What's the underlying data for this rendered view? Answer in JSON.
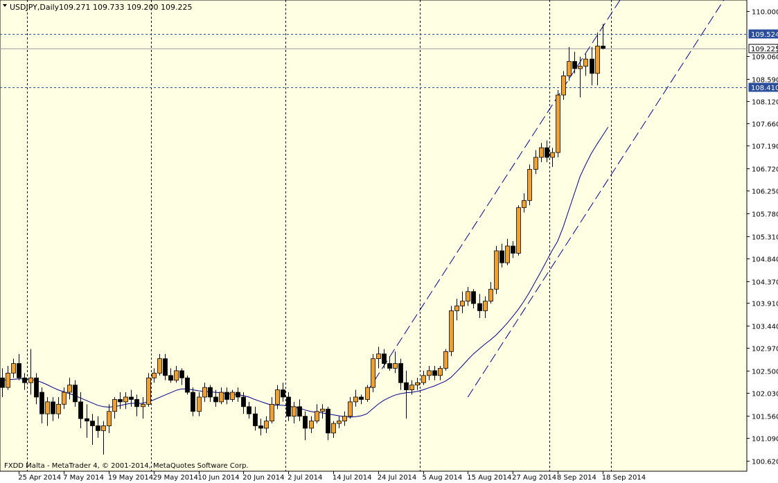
{
  "header": {
    "symbol": "USDJPY,Daily",
    "ohlc": "109.271 109.733 109.200 109.225"
  },
  "footer": {
    "copyright": "FXDD Malta - MetaTrader 4, © 2001-2014, MetaQuotes Software Corp."
  },
  "colors": {
    "background": "#ffffff",
    "plot_background": "#ffffe4",
    "bull_body": "#f0a030",
    "bear_body": "#000000",
    "wick": "#000000",
    "ma_line": "#00008b",
    "channel": "#00008b",
    "grid_vertical": "#000000",
    "level_line": "#2a4d9c",
    "price_tag_blue": "#2a4d9c",
    "price_tag_current": "#000000",
    "bid_line": "#a0a0a0"
  },
  "chart_data": {
    "type": "candlestick",
    "symbol": "USDJPY",
    "timeframe": "Daily",
    "ylim": [
      100.45,
      110.2
    ],
    "y_ticks": [
      110.0,
      109.06,
      108.59,
      108.12,
      107.66,
      107.19,
      106.72,
      106.25,
      105.78,
      105.31,
      104.84,
      104.37,
      103.91,
      103.44,
      102.97,
      102.5,
      102.03,
      101.56,
      101.09,
      100.62
    ],
    "y_tick_labels": [
      "110.000",
      "109.060",
      "108.590",
      "108.120",
      "107.660",
      "107.190",
      "106.720",
      "106.250",
      "105.780",
      "105.310",
      "104.840",
      "104.370",
      "103.910",
      "103.440",
      "102.970",
      "102.500",
      "102.030",
      "101.560",
      "101.090",
      "100.620"
    ],
    "x_labels": [
      {
        "text": "25 Apr 2014",
        "index": 3
      },
      {
        "text": "7 May 2014",
        "index": 11
      },
      {
        "text": "19 May 2014",
        "index": 19
      },
      {
        "text": "29 May 2014",
        "index": 27
      },
      {
        "text": "10 Jun 2014",
        "index": 35
      },
      {
        "text": "20 Jun 2014",
        "index": 43
      },
      {
        "text": "2 Jul 2014",
        "index": 51
      },
      {
        "text": "14 Jul 2014",
        "index": 59
      },
      {
        "text": "24 Jul 2014",
        "index": 67
      },
      {
        "text": "5 Aug 2014",
        "index": 75
      },
      {
        "text": "15 Aug 2014",
        "index": 83
      },
      {
        "text": "27 Aug 2014",
        "index": 91
      },
      {
        "text": "8 Sep 2014",
        "index": 99
      },
      {
        "text": "18 Sep 2014",
        "index": 107
      }
    ],
    "vertical_grid_indices": [
      4.5,
      26.5,
      50.5,
      74.5,
      97.5,
      108.5
    ],
    "horizontal_levels": [
      109.524,
      108.41
    ],
    "current_bid": 109.225,
    "price_tags": [
      {
        "label": "109.524",
        "value": 109.524,
        "style": "blue"
      },
      {
        "label": "109.225",
        "value": 109.225,
        "style": "current"
      },
      {
        "label": "108.410",
        "value": 108.41,
        "style": "blue"
      }
    ],
    "candles": [
      {
        "o": 102.35,
        "h": 102.55,
        "l": 101.95,
        "c": 102.15
      },
      {
        "o": 102.15,
        "h": 102.6,
        "l": 102.1,
        "c": 102.45
      },
      {
        "o": 102.45,
        "h": 102.75,
        "l": 102.35,
        "c": 102.65
      },
      {
        "o": 102.65,
        "h": 102.85,
        "l": 102.3,
        "c": 102.35
      },
      {
        "o": 102.35,
        "h": 102.45,
        "l": 102.1,
        "c": 102.25
      },
      {
        "o": 102.25,
        "h": 102.95,
        "l": 102.0,
        "c": 102.35
      },
      {
        "o": 102.35,
        "h": 102.45,
        "l": 101.8,
        "c": 101.95
      },
      {
        "o": 102.05,
        "h": 102.15,
        "l": 101.4,
        "c": 101.6
      },
      {
        "o": 101.6,
        "h": 101.95,
        "l": 101.35,
        "c": 101.85
      },
      {
        "o": 101.85,
        "h": 101.95,
        "l": 101.45,
        "c": 101.6
      },
      {
        "o": 101.6,
        "h": 101.95,
        "l": 101.5,
        "c": 101.8
      },
      {
        "o": 101.8,
        "h": 102.15,
        "l": 101.7,
        "c": 102.05
      },
      {
        "o": 102.05,
        "h": 102.35,
        "l": 101.9,
        "c": 102.2
      },
      {
        "o": 102.2,
        "h": 102.3,
        "l": 101.75,
        "c": 101.85
      },
      {
        "o": 101.85,
        "h": 102.05,
        "l": 101.3,
        "c": 101.5
      },
      {
        "o": 101.5,
        "h": 101.8,
        "l": 101.1,
        "c": 101.45
      },
      {
        "o": 101.45,
        "h": 101.6,
        "l": 100.95,
        "c": 101.35
      },
      {
        "o": 101.35,
        "h": 101.55,
        "l": 101.1,
        "c": 101.25
      },
      {
        "o": 101.25,
        "h": 101.45,
        "l": 100.75,
        "c": 101.35
      },
      {
        "o": 101.35,
        "h": 101.8,
        "l": 101.2,
        "c": 101.65
      },
      {
        "o": 101.65,
        "h": 101.95,
        "l": 101.5,
        "c": 101.9
      },
      {
        "o": 101.9,
        "h": 102.05,
        "l": 101.7,
        "c": 101.85
      },
      {
        "o": 101.85,
        "h": 102.05,
        "l": 101.7,
        "c": 101.95
      },
      {
        "o": 101.95,
        "h": 102.1,
        "l": 101.75,
        "c": 101.9
      },
      {
        "o": 101.9,
        "h": 102.0,
        "l": 101.55,
        "c": 101.75
      },
      {
        "o": 101.75,
        "h": 101.95,
        "l": 101.5,
        "c": 101.8
      },
      {
        "o": 101.8,
        "h": 102.45,
        "l": 101.75,
        "c": 102.35
      },
      {
        "o": 102.35,
        "h": 102.55,
        "l": 102.25,
        "c": 102.45
      },
      {
        "o": 102.45,
        "h": 102.85,
        "l": 102.4,
        "c": 102.75
      },
      {
        "o": 102.75,
        "h": 102.85,
        "l": 102.3,
        "c": 102.4
      },
      {
        "o": 102.4,
        "h": 102.55,
        "l": 102.25,
        "c": 102.3
      },
      {
        "o": 102.3,
        "h": 102.6,
        "l": 102.25,
        "c": 102.5
      },
      {
        "o": 102.5,
        "h": 102.55,
        "l": 102.2,
        "c": 102.35
      },
      {
        "o": 102.35,
        "h": 102.4,
        "l": 102.0,
        "c": 102.05
      },
      {
        "o": 102.05,
        "h": 102.15,
        "l": 101.55,
        "c": 101.65
      },
      {
        "o": 101.65,
        "h": 102.05,
        "l": 101.55,
        "c": 101.95
      },
      {
        "o": 101.95,
        "h": 102.25,
        "l": 101.85,
        "c": 102.15
      },
      {
        "o": 102.15,
        "h": 102.2,
        "l": 101.85,
        "c": 101.95
      },
      {
        "o": 101.95,
        "h": 102.1,
        "l": 101.75,
        "c": 101.85
      },
      {
        "o": 101.85,
        "h": 102.15,
        "l": 101.8,
        "c": 102.05
      },
      {
        "o": 102.05,
        "h": 102.15,
        "l": 101.8,
        "c": 101.9
      },
      {
        "o": 101.9,
        "h": 102.1,
        "l": 101.85,
        "c": 102.05
      },
      {
        "o": 102.05,
        "h": 102.15,
        "l": 101.85,
        "c": 101.95
      },
      {
        "o": 101.95,
        "h": 102.05,
        "l": 101.6,
        "c": 101.75
      },
      {
        "o": 101.75,
        "h": 101.85,
        "l": 101.5,
        "c": 101.6
      },
      {
        "o": 101.6,
        "h": 101.75,
        "l": 101.25,
        "c": 101.35
      },
      {
        "o": 101.35,
        "h": 101.5,
        "l": 101.15,
        "c": 101.3
      },
      {
        "o": 101.3,
        "h": 101.55,
        "l": 101.2,
        "c": 101.45
      },
      {
        "o": 101.45,
        "h": 101.95,
        "l": 101.4,
        "c": 101.8
      },
      {
        "o": 101.8,
        "h": 102.2,
        "l": 101.7,
        "c": 102.1
      },
      {
        "o": 102.1,
        "h": 102.25,
        "l": 101.85,
        "c": 101.95
      },
      {
        "o": 101.95,
        "h": 102.05,
        "l": 101.45,
        "c": 101.55
      },
      {
        "o": 101.55,
        "h": 101.85,
        "l": 101.4,
        "c": 101.75
      },
      {
        "o": 101.75,
        "h": 101.9,
        "l": 101.45,
        "c": 101.55
      },
      {
        "o": 101.55,
        "h": 101.65,
        "l": 101.05,
        "c": 101.3
      },
      {
        "o": 101.3,
        "h": 101.55,
        "l": 101.2,
        "c": 101.45
      },
      {
        "o": 101.45,
        "h": 101.8,
        "l": 101.4,
        "c": 101.65
      },
      {
        "o": 101.65,
        "h": 101.8,
        "l": 101.5,
        "c": 101.7
      },
      {
        "o": 101.7,
        "h": 101.75,
        "l": 101.05,
        "c": 101.2
      },
      {
        "o": 101.2,
        "h": 101.45,
        "l": 101.1,
        "c": 101.4
      },
      {
        "o": 101.4,
        "h": 101.55,
        "l": 101.3,
        "c": 101.45
      },
      {
        "o": 101.45,
        "h": 101.65,
        "l": 101.35,
        "c": 101.55
      },
      {
        "o": 101.55,
        "h": 101.95,
        "l": 101.5,
        "c": 101.85
      },
      {
        "o": 101.85,
        "h": 102.1,
        "l": 101.75,
        "c": 101.95
      },
      {
        "o": 101.95,
        "h": 102.0,
        "l": 101.8,
        "c": 101.9
      },
      {
        "o": 101.9,
        "h": 102.2,
        "l": 101.85,
        "c": 102.15
      },
      {
        "o": 102.15,
        "h": 102.85,
        "l": 102.05,
        "c": 102.75
      },
      {
        "o": 102.75,
        "h": 103.0,
        "l": 102.55,
        "c": 102.85
      },
      {
        "o": 102.85,
        "h": 102.95,
        "l": 102.55,
        "c": 102.65
      },
      {
        "o": 102.65,
        "h": 102.8,
        "l": 102.5,
        "c": 102.55
      },
      {
        "o": 102.55,
        "h": 102.9,
        "l": 102.45,
        "c": 102.65
      },
      {
        "o": 102.65,
        "h": 102.75,
        "l": 102.1,
        "c": 102.25
      },
      {
        "o": 102.25,
        "h": 102.5,
        "l": 101.5,
        "c": 102.1
      },
      {
        "o": 102.1,
        "h": 102.3,
        "l": 102.0,
        "c": 102.2
      },
      {
        "o": 102.2,
        "h": 102.35,
        "l": 102.1,
        "c": 102.25
      },
      {
        "o": 102.25,
        "h": 102.5,
        "l": 102.2,
        "c": 102.4
      },
      {
        "o": 102.4,
        "h": 102.6,
        "l": 102.3,
        "c": 102.5
      },
      {
        "o": 102.5,
        "h": 102.6,
        "l": 102.3,
        "c": 102.4
      },
      {
        "o": 102.4,
        "h": 102.6,
        "l": 102.3,
        "c": 102.55
      },
      {
        "o": 102.55,
        "h": 102.95,
        "l": 102.5,
        "c": 102.9
      },
      {
        "o": 102.9,
        "h": 103.85,
        "l": 102.8,
        "c": 103.75
      },
      {
        "o": 103.75,
        "h": 104.0,
        "l": 103.55,
        "c": 103.85
      },
      {
        "o": 103.85,
        "h": 104.15,
        "l": 103.7,
        "c": 103.95
      },
      {
        "o": 103.95,
        "h": 104.25,
        "l": 103.85,
        "c": 104.15
      },
      {
        "o": 104.15,
        "h": 104.2,
        "l": 103.8,
        "c": 103.9
      },
      {
        "o": 103.9,
        "h": 104.1,
        "l": 103.6,
        "c": 103.75
      },
      {
        "o": 103.75,
        "h": 104.05,
        "l": 103.6,
        "c": 103.95
      },
      {
        "o": 103.95,
        "h": 104.35,
        "l": 103.9,
        "c": 104.2
      },
      {
        "o": 104.2,
        "h": 105.1,
        "l": 104.1,
        "c": 105.0
      },
      {
        "o": 105.0,
        "h": 105.15,
        "l": 104.65,
        "c": 104.75
      },
      {
        "o": 104.75,
        "h": 105.25,
        "l": 104.7,
        "c": 105.1
      },
      {
        "o": 105.1,
        "h": 105.2,
        "l": 104.85,
        "c": 104.95
      },
      {
        "o": 104.95,
        "h": 105.95,
        "l": 104.9,
        "c": 105.9
      },
      {
        "o": 105.9,
        "h": 106.2,
        "l": 105.8,
        "c": 106.05
      },
      {
        "o": 106.05,
        "h": 106.8,
        "l": 105.95,
        "c": 106.7
      },
      {
        "o": 106.7,
        "h": 107.1,
        "l": 106.6,
        "c": 106.95
      },
      {
        "o": 106.95,
        "h": 107.25,
        "l": 106.85,
        "c": 107.15
      },
      {
        "o": 107.15,
        "h": 107.3,
        "l": 106.85,
        "c": 106.95
      },
      {
        "o": 106.95,
        "h": 107.15,
        "l": 106.75,
        "c": 107.05
      },
      {
        "o": 107.05,
        "h": 108.35,
        "l": 106.95,
        "c": 108.25
      },
      {
        "o": 108.25,
        "h": 108.75,
        "l": 108.15,
        "c": 108.65
      },
      {
        "o": 108.65,
        "h": 109.25,
        "l": 108.55,
        "c": 108.95
      },
      {
        "o": 108.95,
        "h": 109.15,
        "l": 108.7,
        "c": 108.8
      },
      {
        "o": 108.8,
        "h": 109.05,
        "l": 108.2,
        "c": 108.85
      },
      {
        "o": 108.85,
        "h": 109.1,
        "l": 108.65,
        "c": 109.0
      },
      {
        "o": 109.0,
        "h": 109.25,
        "l": 108.45,
        "c": 108.7
      },
      {
        "o": 108.7,
        "h": 109.55,
        "l": 108.45,
        "c": 109.27
      },
      {
        "o": 109.271,
        "h": 109.733,
        "l": 109.2,
        "c": 109.225
      }
    ],
    "moving_average": {
      "name": "",
      "values": [
        102.3,
        102.31,
        102.32,
        102.33,
        102.33,
        102.32,
        102.3,
        102.26,
        102.21,
        102.15,
        102.1,
        102.06,
        102.02,
        101.98,
        101.93,
        101.88,
        101.83,
        101.78,
        101.75,
        101.74,
        101.75,
        101.77,
        101.8,
        101.82,
        101.82,
        101.82,
        101.85,
        101.89,
        101.94,
        101.99,
        102.04,
        102.09,
        102.12,
        102.12,
        102.1,
        102.08,
        102.07,
        102.06,
        102.05,
        102.04,
        102.02,
        102.01,
        102.0,
        101.98,
        101.95,
        101.9,
        101.86,
        101.82,
        101.78,
        101.78,
        101.78,
        101.76,
        101.74,
        101.72,
        101.68,
        101.65,
        101.63,
        101.62,
        101.6,
        101.58,
        101.56,
        101.54,
        101.53,
        101.54,
        101.56,
        101.6,
        101.7,
        101.8,
        101.88,
        101.94,
        101.99,
        102.02,
        102.04,
        102.05,
        102.07,
        102.1,
        102.14,
        102.18,
        102.23,
        102.28,
        102.36,
        102.48,
        102.6,
        102.73,
        102.85,
        102.95,
        103.05,
        103.14,
        103.24,
        103.36,
        103.49,
        103.63,
        103.78,
        103.95,
        104.14,
        104.35,
        104.56,
        104.78,
        105.0,
        105.2,
        105.5,
        105.85,
        106.2,
        106.55,
        106.8,
        107.03,
        107.22,
        107.4,
        107.58
      ]
    },
    "trendlines": [
      {
        "style": "dashed",
        "from": {
          "i": 65,
          "v": 102.05
        },
        "to": {
          "i": 110.5,
          "v": 110.3
        }
      },
      {
        "style": "dashed",
        "from": {
          "i": 83,
          "v": 101.95
        },
        "to": {
          "i": 129,
          "v": 110.3
        }
      }
    ]
  }
}
